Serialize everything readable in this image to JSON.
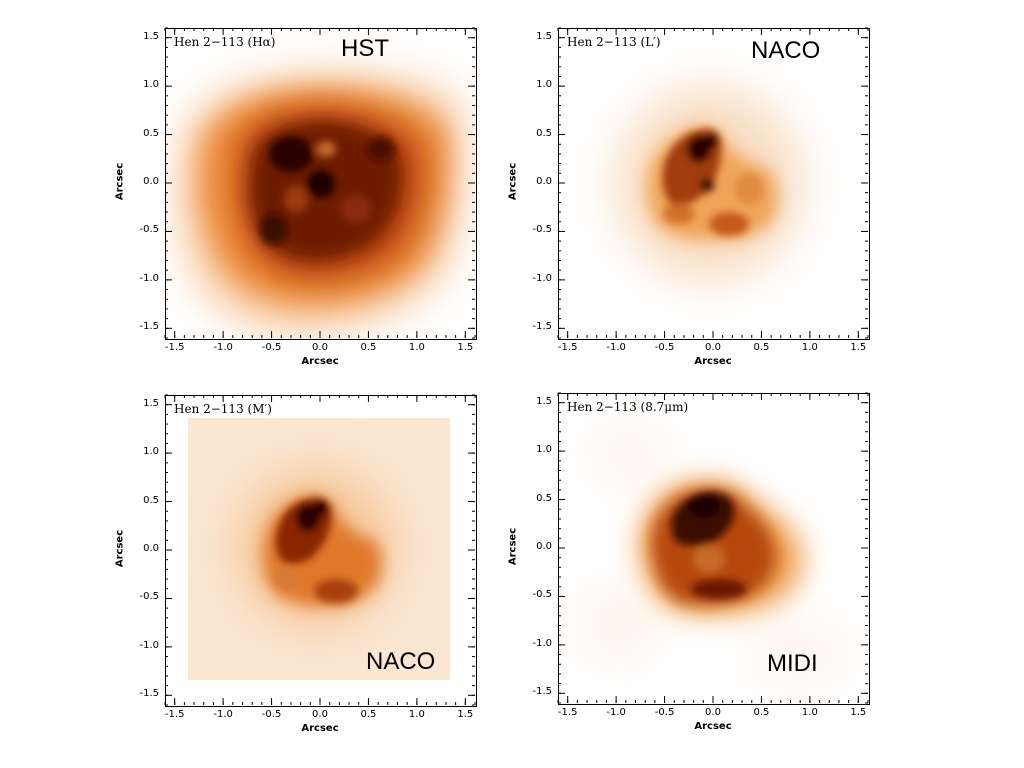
{
  "axis_ticks": [
    "-1.5",
    "-1.0",
    "-0.5",
    "0.0",
    "0.5",
    "1.0",
    "1.5"
  ],
  "y_ticks": [
    "1.5",
    "1.0",
    "0.5",
    "0.0",
    "-0.5",
    "-1.0",
    "-1.5"
  ],
  "axis_label": "Arcsec",
  "panels": [
    {
      "label": "Hen 2−113 (Hα)",
      "instrument": "HST"
    },
    {
      "label": "Hen 2−113 (L′)",
      "instrument": "NACO"
    },
    {
      "label": "Hen 2−113 (M′)",
      "instrument": "NACO"
    },
    {
      "label": "Hen 2−113 (8.7μm)",
      "instrument": "MIDI"
    }
  ],
  "colors": {
    "colormap_light": "#fdf1e4",
    "colormap_mid": "#e87a1e",
    "colormap_dark": "#3a0a02"
  }
}
